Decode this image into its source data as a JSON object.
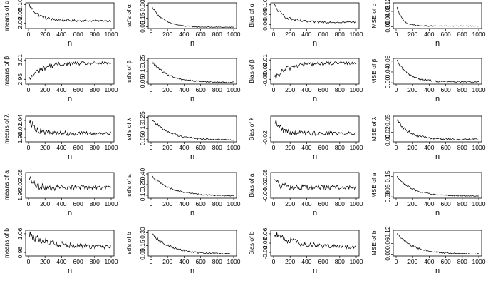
{
  "figure": {
    "description_free": true,
    "x_ticks": [
      "0",
      "200",
      "400",
      "600",
      "800",
      "1000"
    ],
    "x_values": [
      0,
      200,
      400,
      600,
      800,
      1000
    ],
    "xlim": [
      0,
      1000
    ]
  },
  "chart_data": [
    {
      "type": "line",
      "id": "means-alpha",
      "xlabel": "n",
      "ylabel": "means of α",
      "ylim": [
        1.97,
        2.11
      ],
      "yticks": [
        "2.00",
        "2.05",
        "2.10"
      ],
      "ytick_values": [
        2.0,
        2.05,
        2.1
      ],
      "shape": "decay",
      "start": 2.105,
      "end": 2.012,
      "noise": 0.008,
      "tau": 120
    },
    {
      "type": "line",
      "id": "sds-alpha",
      "xlabel": "n",
      "ylabel": "sd's of α",
      "ylim": [
        0.03,
        0.33
      ],
      "yticks": [
        "0.05",
        "0.15",
        "0.30"
      ],
      "ytick_values": [
        0.05,
        0.15,
        0.3
      ],
      "shape": "decay",
      "start": 0.31,
      "end": 0.045,
      "noise": 0.008,
      "tau": 140
    },
    {
      "type": "line",
      "id": "bias-alpha",
      "xlabel": "n",
      "ylabel": "Bias of α",
      "ylim": [
        -0.02,
        0.11
      ],
      "yticks": [
        "0.00",
        "0.05",
        "0.10"
      ],
      "ytick_values": [
        0.0,
        0.05,
        0.1
      ],
      "shape": "decay",
      "start": 0.105,
      "end": 0.012,
      "noise": 0.007,
      "tau": 120
    },
    {
      "type": "line",
      "id": "mse-alpha",
      "xlabel": "n",
      "ylabel": "MSE of α",
      "ylim": [
        -0.01,
        0.125
      ],
      "yticks": [
        "0.00",
        "0.04",
        "0.08",
        "0.12"
      ],
      "ytick_values": [
        0.0,
        0.04,
        0.08,
        0.12
      ],
      "shape": "decay",
      "start": 0.115,
      "end": 0.003,
      "noise": 0.003,
      "tau": 70
    },
    {
      "type": "line",
      "id": "means-beta",
      "xlabel": "n",
      "ylabel": "means of β",
      "ylim": [
        2.935,
        3.015
      ],
      "yticks": [
        "2.95",
        "3.01"
      ],
      "ytick_values": [
        2.95,
        3.01
      ],
      "shape": "rise",
      "start": 2.945,
      "end": 3.0,
      "noise": 0.008,
      "tau": 140
    },
    {
      "type": "line",
      "id": "sds-beta",
      "xlabel": "n",
      "ylabel": "sd's of β",
      "ylim": [
        0.03,
        0.27
      ],
      "yticks": [
        "0.05",
        "0.15",
        "0.25"
      ],
      "ytick_values": [
        0.05,
        0.15,
        0.25
      ],
      "shape": "decay",
      "start": 0.25,
      "end": 0.045,
      "noise": 0.01,
      "tau": 200
    },
    {
      "type": "line",
      "id": "bias-beta",
      "xlabel": "n",
      "ylabel": "Bias of β",
      "ylim": [
        -0.065,
        0.015
      ],
      "yticks": [
        "-0.05",
        "-0.02",
        "0.01"
      ],
      "ytick_values": [
        -0.05,
        -0.02,
        0.01
      ],
      "shape": "rise",
      "start": -0.055,
      "end": 0.0,
      "noise": 0.008,
      "tau": 140
    },
    {
      "type": "line",
      "id": "mse-beta",
      "xlabel": "n",
      "ylabel": "MSE of β",
      "ylim": [
        -0.005,
        0.09
      ],
      "yticks": [
        "0.00",
        "0.04",
        "0.08"
      ],
      "ytick_values": [
        0.0,
        0.04,
        0.08
      ],
      "shape": "decay",
      "start": 0.085,
      "end": 0.003,
      "noise": 0.004,
      "tau": 150
    },
    {
      "type": "line",
      "id": "means-lambda",
      "xlabel": "n",
      "ylabel": "means of λ",
      "ylim": [
        1.965,
        2.055
      ],
      "yticks": [
        "1.98",
        "2.01",
        "2.04"
      ],
      "ytick_values": [
        1.98,
        2.01,
        2.04
      ],
      "shape": "decay",
      "start": 2.05,
      "end": 1.995,
      "noise": 0.01,
      "tau": 80
    },
    {
      "type": "line",
      "id": "sds-lambda",
      "xlabel": "n",
      "ylabel": "sd's of λ",
      "ylim": [
        0.03,
        0.26
      ],
      "yticks": [
        "0.05",
        "0.15",
        "0.25"
      ],
      "ytick_values": [
        0.05,
        0.15,
        0.25
      ],
      "shape": "decay",
      "start": 0.24,
      "end": 0.045,
      "noise": 0.01,
      "tau": 220
    },
    {
      "type": "line",
      "id": "bias-lambda",
      "xlabel": "n",
      "ylabel": "Bias of λ",
      "ylim": [
        -0.035,
        0.055
      ],
      "yticks": [
        "-0.02"
      ],
      "ytick_values": [
        -0.02
      ],
      "shape": "decay",
      "start": 0.05,
      "end": -0.005,
      "noise": 0.01,
      "tau": 80
    },
    {
      "type": "line",
      "id": "mse-lambda",
      "xlabel": "n",
      "ylabel": "MSE of λ",
      "ylim": [
        -0.004,
        0.06
      ],
      "yticks": [
        "0.00",
        "0.02",
        "0.05"
      ],
      "ytick_values": [
        0.0,
        0.02,
        0.05
      ],
      "shape": "decay",
      "start": 0.055,
      "end": 0.002,
      "noise": 0.003,
      "tau": 150
    },
    {
      "type": "line",
      "id": "means-a",
      "xlabel": "n",
      "ylabel": "means of a",
      "ylim": [
        1.94,
        2.095
      ],
      "yticks": [
        "1.96",
        "2.02",
        "2.08"
      ],
      "ytick_values": [
        1.96,
        2.02,
        2.08
      ],
      "shape": "decay",
      "start": 2.085,
      "end": 2.005,
      "noise": 0.02,
      "tau": 40
    },
    {
      "type": "line",
      "id": "sds-a",
      "xlabel": "n",
      "ylabel": "sd's of a",
      "ylim": [
        0.06,
        0.42
      ],
      "yticks": [
        "0.10",
        "0.25",
        "0.40"
      ],
      "ytick_values": [
        0.1,
        0.25,
        0.4
      ],
      "shape": "decay",
      "start": 0.39,
      "end": 0.09,
      "noise": 0.012,
      "tau": 230
    },
    {
      "type": "line",
      "id": "bias-a",
      "xlabel": "n",
      "ylabel": "Bias of a",
      "ylim": [
        -0.06,
        0.095
      ],
      "yticks": [
        "-0.04",
        "0.02",
        "0.08"
      ],
      "ytick_values": [
        -0.04,
        0.02,
        0.08
      ],
      "shape": "decay",
      "start": 0.085,
      "end": 0.005,
      "noise": 0.02,
      "tau": 40
    },
    {
      "type": "line",
      "id": "mse-a",
      "xlabel": "n",
      "ylabel": "MSE of a",
      "ylim": [
        -0.01,
        0.18
      ],
      "yticks": [
        "0.00",
        "0.05",
        "0.15"
      ],
      "ytick_values": [
        0.0,
        0.05,
        0.15
      ],
      "shape": "decay",
      "start": 0.165,
      "end": 0.006,
      "noise": 0.006,
      "tau": 180
    },
    {
      "type": "line",
      "id": "means-b",
      "xlabel": "n",
      "ylabel": "means of b",
      "ylim": [
        0.965,
        1.075
      ],
      "yticks": [
        "0.98",
        "1.06"
      ],
      "ytick_values": [
        0.98,
        1.06
      ],
      "shape": "slowdecay",
      "start": 1.055,
      "end": 1.0,
      "noise": 0.014,
      "tau": 320
    },
    {
      "type": "line",
      "id": "sds-b",
      "xlabel": "n",
      "ylabel": "sd's of b",
      "ylim": [
        0.03,
        0.33
      ],
      "yticks": [
        "0.05",
        "0.15",
        "0.30"
      ],
      "ytick_values": [
        0.05,
        0.15,
        0.3
      ],
      "shape": "decay",
      "start": 0.3,
      "end": 0.05,
      "noise": 0.012,
      "tau": 230
    },
    {
      "type": "line",
      "id": "bias-b",
      "xlabel": "n",
      "ylabel": "Bias of b",
      "ylim": [
        -0.035,
        0.075
      ],
      "yticks": [
        "-0.02",
        "0.02",
        "0.06"
      ],
      "ytick_values": [
        -0.02,
        0.02,
        0.06
      ],
      "shape": "slowdecay",
      "start": 0.055,
      "end": 0.0,
      "noise": 0.014,
      "tau": 320
    },
    {
      "type": "line",
      "id": "mse-b",
      "xlabel": "n",
      "ylabel": "MSE of b",
      "ylim": [
        -0.006,
        0.13
      ],
      "yticks": [
        "0.00",
        "0.06",
        "0.12"
      ],
      "ytick_values": [
        0.0,
        0.06,
        0.12
      ],
      "shape": "decay",
      "start": 0.12,
      "end": 0.004,
      "noise": 0.005,
      "tau": 200
    }
  ]
}
